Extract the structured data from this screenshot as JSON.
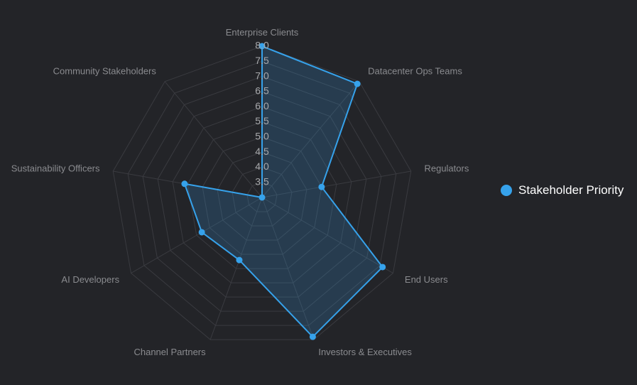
{
  "colors": {
    "series": "#36a2eb",
    "series_fill": "rgba(54,162,235,0.20)",
    "grid": "#3a3b40",
    "axis_label": "#8a8b8f",
    "tick_label": "#a7a8ab"
  },
  "chart_data": {
    "type": "radar",
    "title": "",
    "categories": [
      "Enterprise Clients",
      "Datacenter Ops Teams",
      "Regulators",
      "End Users",
      "Investors & Executives",
      "Channel Partners",
      "AI Developers",
      "Sustainability Officers",
      "Community Stakeholders"
    ],
    "series": [
      {
        "name": "Stakeholder Priority",
        "values": [
          8.0,
          7.9,
          5.0,
          7.6,
          7.9,
          5.2,
          5.3,
          5.6,
          3.0
        ]
      }
    ],
    "r_range": [
      3.0,
      8.0
    ],
    "r_ticks": [
      "3.5",
      "4.0",
      "4.5",
      "5.0",
      "5.5",
      "6.0",
      "6.5",
      "7.0",
      "7.5",
      "8.0"
    ],
    "grid": true,
    "legend_position": "right"
  }
}
